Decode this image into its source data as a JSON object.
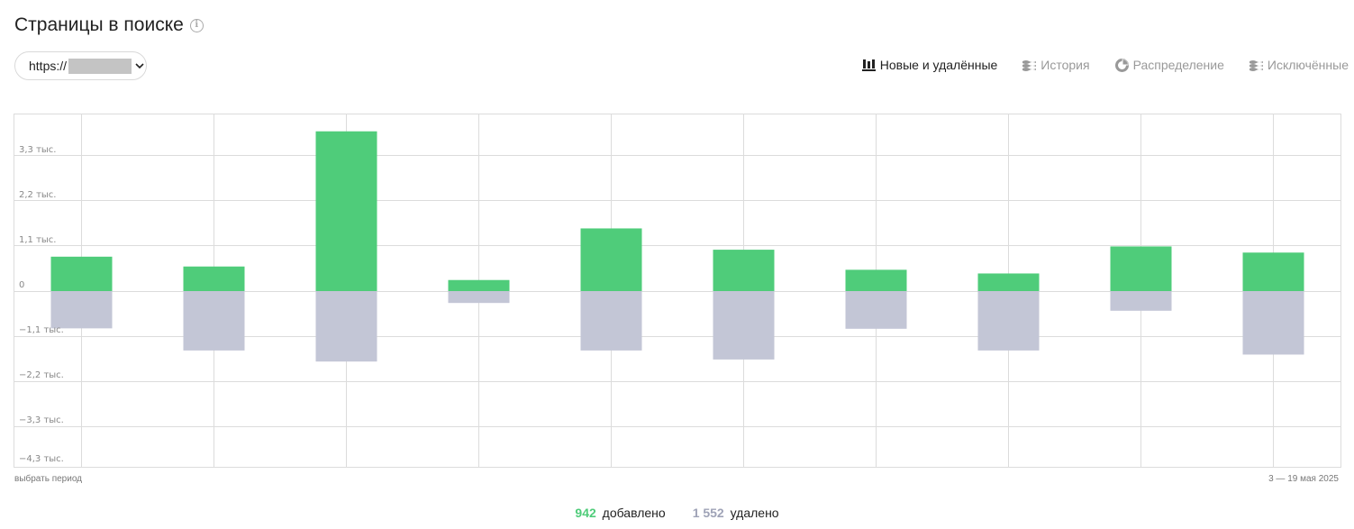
{
  "header": {
    "title": "Страницы в поиске",
    "info_icon": "info-icon"
  },
  "site_select": {
    "url_prefix": "https://",
    "chevron": "chevron-down-icon"
  },
  "view_tabs": [
    {
      "label": "Новые и удалённые",
      "icon": "stacked-bars-icon",
      "active": true
    },
    {
      "label": "История",
      "icon": "layers-icon",
      "active": false
    },
    {
      "label": "Распределение",
      "icon": "pie-icon",
      "active": false
    },
    {
      "label": "Исключённые",
      "icon": "layers-icon",
      "active": false
    }
  ],
  "footer": {
    "period_link": "выбрать период",
    "date_range": "3 — 19 мая 2025"
  },
  "summary": {
    "added_value": "942",
    "added_label": "добавлено",
    "removed_value": "1 552",
    "removed_label": "удалено"
  },
  "colors": {
    "added": "#4fcc7a",
    "removed": "#c3c6d6",
    "grid": "#dcdcdc"
  },
  "chart_data": {
    "type": "bar",
    "y_ticks": [
      {
        "value": 3300,
        "label": "3,3 тыс."
      },
      {
        "value": 2200,
        "label": "2,2 тыс."
      },
      {
        "value": 1100,
        "label": "1,1 тыс."
      },
      {
        "value": 0,
        "label": "0"
      },
      {
        "value": -1100,
        "label": "−1,1 тыс."
      },
      {
        "value": -2200,
        "label": "−2,2 тыс."
      },
      {
        "value": -3300,
        "label": "−3,3 тыс."
      },
      {
        "value": -4300,
        "label": "−4,3 тыс."
      }
    ],
    "ylim": [
      -4300,
      4150
    ],
    "series": [
      {
        "name": "добавлено",
        "values": [
          840,
          600,
          3900,
          270,
          1530,
          1010,
          520,
          430,
          1090,
          940
        ]
      },
      {
        "name": "удалено",
        "values": [
          -910,
          -1450,
          -1720,
          -290,
          -1450,
          -1670,
          -920,
          -1450,
          -480,
          -1550
        ]
      }
    ],
    "grid": true
  }
}
